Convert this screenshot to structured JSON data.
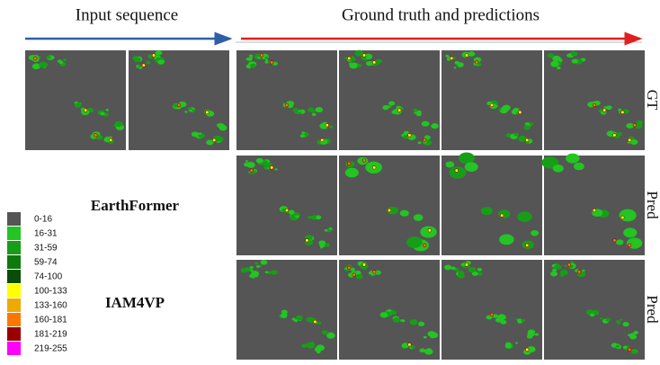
{
  "header": {
    "input": "Input sequence",
    "output": "Ground truth and predictions"
  },
  "rows": [
    "GT",
    "Pred",
    "Pred"
  ],
  "models": [
    "EarthFormer",
    "IAM4VP"
  ],
  "legend": [
    {
      "label": "0-16",
      "color": "#555555"
    },
    {
      "label": "16-31",
      "color": "#22c522"
    },
    {
      "label": "31-59",
      "color": "#179e17"
    },
    {
      "label": "59-74",
      "color": "#0c7a0c"
    },
    {
      "label": "74-100",
      "color": "#0a4d0a"
    },
    {
      "label": "100-133",
      "color": "#ffff00"
    },
    {
      "label": "133-160",
      "color": "#eeaa00"
    },
    {
      "label": "160-181",
      "color": "#ff7700"
    },
    {
      "label": "181-219",
      "color": "#990000"
    },
    {
      "label": "219-255",
      "color": "#ff00ff"
    }
  ]
}
